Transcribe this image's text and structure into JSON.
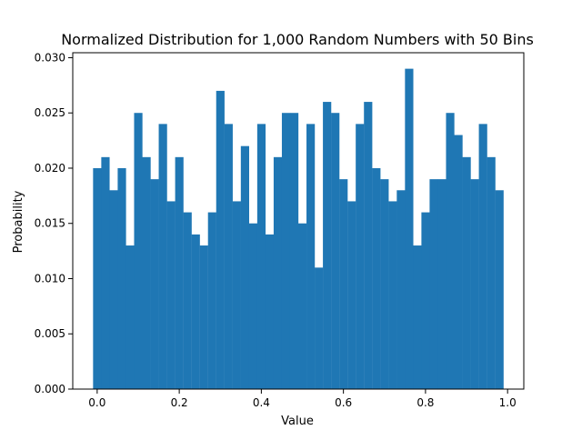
{
  "chart_data": {
    "type": "bar",
    "title": "Normalized Distribution for 1,000 Random Numbers with 50 Bins",
    "xlabel": "Value",
    "ylabel": "Probability",
    "xlim": [
      -0.0595,
      1.0395
    ],
    "ylim": [
      0.0,
      0.03045
    ],
    "bin_start": -0.01,
    "bin_width": 0.02,
    "xticks": [
      0.0,
      0.2,
      0.4,
      0.6,
      0.8,
      1.0
    ],
    "xtick_labels": [
      "0.0",
      "0.2",
      "0.4",
      "0.6",
      "0.8",
      "1.0"
    ],
    "yticks": [
      0.0,
      0.005,
      0.01,
      0.015,
      0.02,
      0.025,
      0.03
    ],
    "ytick_labels": [
      "0.000",
      "0.005",
      "0.010",
      "0.015",
      "0.020",
      "0.025",
      "0.030"
    ],
    "grid": false,
    "legend": "none",
    "bar_color": "#1f77b4",
    "values": [
      0.02,
      0.021,
      0.018,
      0.02,
      0.013,
      0.025,
      0.021,
      0.019,
      0.024,
      0.017,
      0.021,
      0.016,
      0.014,
      0.013,
      0.016,
      0.027,
      0.024,
      0.017,
      0.022,
      0.015,
      0.024,
      0.014,
      0.021,
      0.025,
      0.025,
      0.015,
      0.024,
      0.011,
      0.026,
      0.025,
      0.019,
      0.017,
      0.024,
      0.026,
      0.02,
      0.019,
      0.017,
      0.018,
      0.029,
      0.013,
      0.016,
      0.019,
      0.019,
      0.025,
      0.023,
      0.021,
      0.019,
      0.024,
      0.021,
      0.018
    ]
  }
}
